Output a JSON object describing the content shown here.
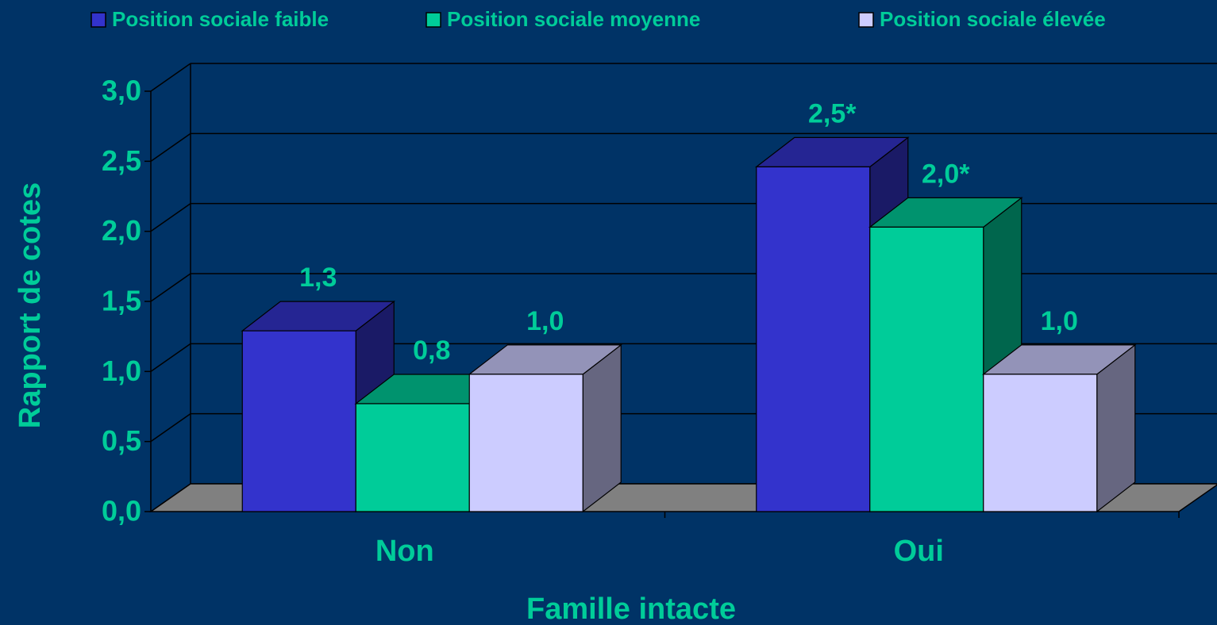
{
  "chart_data": {
    "type": "bar3d",
    "x_label": "Famille intacte",
    "y_label": "Rapport de cotes",
    "categories": [
      "Non",
      "Oui"
    ],
    "series": [
      {
        "name": "Position sociale faible",
        "color": "#3333cc",
        "values": [
          1.29,
          2.46
        ],
        "value_labels": [
          "1,3",
          "2,5*"
        ]
      },
      {
        "name": "Position sociale moyenne",
        "color": "#00cc99",
        "values": [
          0.77,
          2.03
        ],
        "value_labels": [
          "0,8",
          "2,0*"
        ]
      },
      {
        "name": "Position sociale élevée",
        "color": "#ccccff",
        "values": [
          0.98,
          0.98
        ],
        "value_labels": [
          "1,0",
          "1,0"
        ]
      }
    ],
    "ylim": [
      0,
      3
    ],
    "yticks": [
      {
        "value": 0,
        "label": "0,0"
      },
      {
        "value": 0.5,
        "label": "0,5"
      },
      {
        "value": 1,
        "label": "1,0"
      },
      {
        "value": 1.5,
        "label": "1,5"
      },
      {
        "value": 2,
        "label": "2,0"
      },
      {
        "value": 2.5,
        "label": "2,5"
      },
      {
        "value": 3,
        "label": "3,0"
      }
    ],
    "grid": true,
    "legend": "top"
  }
}
